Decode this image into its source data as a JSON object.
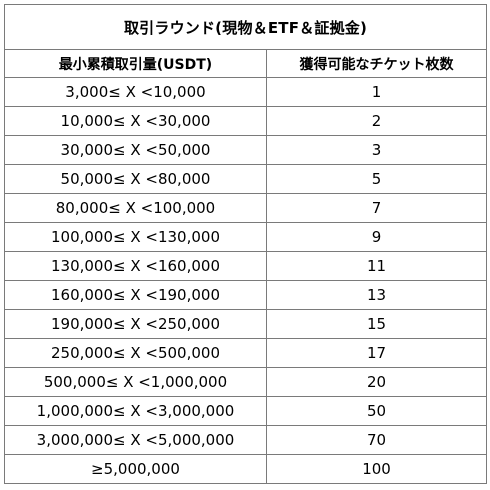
{
  "table": {
    "title": "取引ラウンド(現物＆ETF＆証拠金)",
    "headers": {
      "volume": "最小累積取引量(USDT)",
      "tickets": "獲得可能なチケット枚数"
    },
    "rows": [
      {
        "range": "3,000≤ X <10,000",
        "tickets": "1"
      },
      {
        "range": "10,000≤ X <30,000",
        "tickets": "2"
      },
      {
        "range": "30,000≤ X <50,000",
        "tickets": "3"
      },
      {
        "range": "50,000≤ X <80,000",
        "tickets": "5"
      },
      {
        "range": "80,000≤ X <100,000",
        "tickets": "7"
      },
      {
        "range": "100,000≤ X <130,000",
        "tickets": "9"
      },
      {
        "range": "130,000≤ X <160,000",
        "tickets": "11"
      },
      {
        "range": "160,000≤ X <190,000",
        "tickets": "13"
      },
      {
        "range": "190,000≤ X <250,000",
        "tickets": "15"
      },
      {
        "range": "250,000≤ X <500,000",
        "tickets": "17"
      },
      {
        "range": "500,000≤ X <1,000,000",
        "tickets": "20"
      },
      {
        "range": "1,000,000≤ X <3,000,000",
        "tickets": "50"
      },
      {
        "range": "3,000,000≤ X <5,000,000",
        "tickets": "70"
      },
      {
        "range": "≥5,000,000",
        "tickets": "100"
      }
    ]
  }
}
